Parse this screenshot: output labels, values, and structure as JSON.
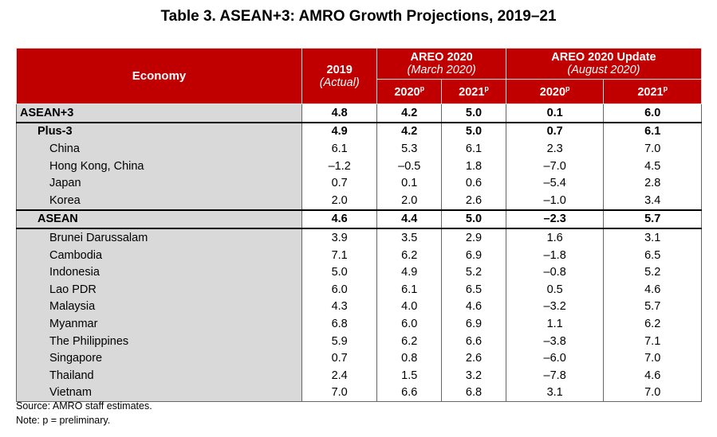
{
  "title": "Table 3. ASEAN+3: AMRO Growth Projections, 2019–21",
  "header": {
    "economy": "Economy",
    "y2019": "2019",
    "y2019_sub": "(Actual)",
    "areo": "AREO 2020",
    "areo_sub": "(March 2020)",
    "update": "AREO 2020 Update",
    "update_sub": "(August 2020)",
    "c2020": "2020",
    "c2021": "2021",
    "sup": "p"
  },
  "rows": [
    {
      "name": "ASEAN+3",
      "level": 0,
      "v": [
        "4.8",
        "4.2",
        "5.0",
        "0.1",
        "6.0"
      ]
    },
    {
      "name": "Plus-3",
      "level": 1,
      "v": [
        "4.9",
        "4.2",
        "5.0",
        "0.7",
        "6.1"
      ]
    },
    {
      "name": "China",
      "level": 2,
      "v": [
        "6.1",
        "5.3",
        "6.1",
        "2.3",
        "7.0"
      ]
    },
    {
      "name": "Hong Kong, China",
      "level": 2,
      "v": [
        "–1.2",
        "–0.5",
        "1.8",
        "–7.0",
        "4.5"
      ]
    },
    {
      "name": "Japan",
      "level": 2,
      "v": [
        "0.7",
        "0.1",
        "0.6",
        "–5.4",
        "2.8"
      ]
    },
    {
      "name": "Korea",
      "level": 2,
      "v": [
        "2.0",
        "2.0",
        "2.6",
        "–1.0",
        "3.4"
      ]
    },
    {
      "name": "ASEAN",
      "level": 1,
      "v": [
        "4.6",
        "4.4",
        "5.0",
        "–2.3",
        "5.7"
      ]
    },
    {
      "name": "Brunei Darussalam",
      "level": 2,
      "v": [
        "3.9",
        "3.5",
        "2.9",
        "1.6",
        "3.1"
      ]
    },
    {
      "name": "Cambodia",
      "level": 2,
      "v": [
        "7.1",
        "6.2",
        "6.9",
        "–1.8",
        "6.5"
      ]
    },
    {
      "name": "Indonesia",
      "level": 2,
      "v": [
        "5.0",
        "4.9",
        "5.2",
        "–0.8",
        "5.2"
      ]
    },
    {
      "name": "Lao PDR",
      "level": 2,
      "v": [
        "6.0",
        "6.1",
        "6.5",
        "0.5",
        "4.6"
      ]
    },
    {
      "name": "Malaysia",
      "level": 2,
      "v": [
        "4.3",
        "4.0",
        "4.6",
        "–3.2",
        "5.7"
      ]
    },
    {
      "name": "Myanmar",
      "level": 2,
      "v": [
        "6.8",
        "6.0",
        "6.9",
        "1.1",
        "6.2"
      ]
    },
    {
      "name": "The Philippines",
      "level": 2,
      "v": [
        "5.9",
        "6.2",
        "6.6",
        "–3.8",
        "7.1"
      ]
    },
    {
      "name": "Singapore",
      "level": 2,
      "v": [
        "0.7",
        "0.8",
        "2.6",
        "–6.0",
        "7.0"
      ]
    },
    {
      "name": "Thailand",
      "level": 2,
      "v": [
        "2.4",
        "1.5",
        "3.2",
        "–7.8",
        "4.6"
      ]
    },
    {
      "name": "Vietnam",
      "level": 2,
      "v": [
        "7.0",
        "6.6",
        "6.8",
        "3.1",
        "7.0"
      ]
    }
  ],
  "source": "Source: AMRO staff estimates.",
  "note": "Note: p = preliminary.",
  "colors": {
    "header": "#c00000",
    "name_col": "#d9d9d9"
  }
}
